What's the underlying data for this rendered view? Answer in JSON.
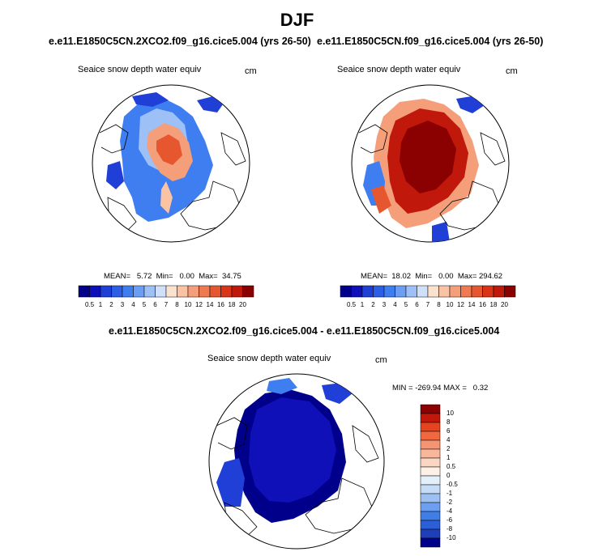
{
  "title": "DJF",
  "panels": [
    {
      "case": "e.e11.E1850C5CN.2XCO2.f09_g16.cice5.004 (yrs 26-50)",
      "variable": "Seaice snow depth water equiv",
      "units": "cm",
      "stats_text": "MEAN=   5.72  Min=   0.00  Max=  34.75",
      "mean": 5.72,
      "min": 0.0,
      "max": 34.75
    },
    {
      "case": "e.e11.E1850C5CN.f09_g16.cice5.004 (yrs 26-50)",
      "variable": "Seaice snow depth water equiv",
      "units": "cm",
      "stats_text": "MEAN=  18.02  Min=   0.00  Max= 294.62",
      "mean": 18.02,
      "min": 0.0,
      "max": 294.62
    }
  ],
  "colorbar": {
    "labels": [
      "0.5",
      "1",
      "2",
      "3",
      "4",
      "5",
      "6",
      "7",
      "8",
      "10",
      "12",
      "14",
      "16",
      "18",
      "20"
    ],
    "colors": [
      "#00008b",
      "#1010b8",
      "#1f3fd6",
      "#2c5ee6",
      "#3f7ef0",
      "#6c9ff3",
      "#9dc0f6",
      "#cfe0fb",
      "#fbe2cf",
      "#f9c3a4",
      "#f59f7a",
      "#ef7a52",
      "#e6562f",
      "#d93318",
      "#c0180a",
      "#8b0000"
    ]
  },
  "diff_panel": {
    "title": "e.e11.E1850C5CN.2XCO2.f09_g16.cice5.004 - e.e11.E1850C5CN.f09_g16.cice5.004",
    "variable": "Seaice snow depth water equiv",
    "units": "cm",
    "stats_text": "MIN = -269.94 MAX =   0.32",
    "min": -269.94,
    "max": 0.32
  },
  "diff_colorbar": {
    "labels": [
      "10",
      "8",
      "6",
      "4",
      "2",
      "1",
      "0.5",
      "0",
      "-0.5",
      "-1",
      "-2",
      "-4",
      "-6",
      "-8",
      "-10"
    ],
    "colors": [
      "#8b0000",
      "#c0180a",
      "#e6441f",
      "#f0683f",
      "#f59472",
      "#f8b79b",
      "#fbd7c3",
      "#fef0e6",
      "#e4effc",
      "#c6dbf6",
      "#9dc0f3",
      "#6c9ff0",
      "#3f7ee6",
      "#2c5ed6",
      "#1f3fb8",
      "#00008b"
    ]
  },
  "map_colors": {
    "land_outline": "#000000",
    "ocean": "#ffffff"
  }
}
